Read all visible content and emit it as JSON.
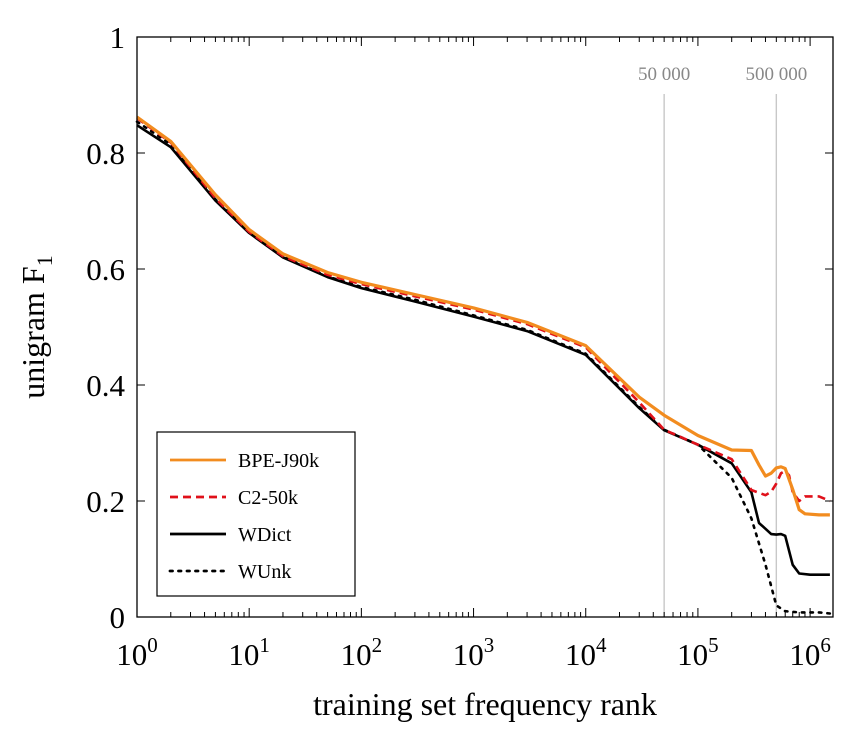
{
  "chart_data": {
    "type": "line",
    "xlabel": "training set frequency rank",
    "ylabel": "unigram F",
    "ylabel_subscript": "1",
    "x_scale": "log",
    "xlim": [
      1,
      1600000
    ],
    "ylim": [
      0,
      1
    ],
    "x_ticks": [
      {
        "value": 1,
        "base": "10",
        "exp": "0"
      },
      {
        "value": 10,
        "base": "10",
        "exp": "1"
      },
      {
        "value": 100,
        "base": "10",
        "exp": "2"
      },
      {
        "value": 1000,
        "base": "10",
        "exp": "3"
      },
      {
        "value": 10000,
        "base": "10",
        "exp": "4"
      },
      {
        "value": 100000,
        "base": "10",
        "exp": "5"
      },
      {
        "value": 1000000,
        "base": "10",
        "exp": "6"
      }
    ],
    "y_ticks": [
      {
        "value": 0,
        "label": "0"
      },
      {
        "value": 0.2,
        "label": "0.2"
      },
      {
        "value": 0.4,
        "label": "0.4"
      },
      {
        "value": 0.6,
        "label": "0.6"
      },
      {
        "value": 0.8,
        "label": "0.8"
      },
      {
        "value": 1,
        "label": "1"
      }
    ],
    "reference_lines": [
      {
        "x": 50000,
        "label": "50 000",
        "color": "#c8c8c8"
      },
      {
        "x": 500000,
        "label": "500 000",
        "color": "#c8c8c8"
      }
    ],
    "grid": false,
    "legend_position": "bottom-left",
    "series": [
      {
        "name": "BPE-J90k",
        "color": "#f28c1f",
        "style": "solid",
        "points": [
          [
            1,
            0.862
          ],
          [
            2,
            0.82
          ],
          [
            5,
            0.728
          ],
          [
            10,
            0.668
          ],
          [
            20,
            0.626
          ],
          [
            50,
            0.594
          ],
          [
            100,
            0.577
          ],
          [
            300,
            0.556
          ],
          [
            1000,
            0.533
          ],
          [
            3000,
            0.508
          ],
          [
            10000,
            0.468
          ],
          [
            30000,
            0.379
          ],
          [
            50000,
            0.348
          ],
          [
            100000,
            0.313
          ],
          [
            200000,
            0.288
          ],
          [
            300000,
            0.287
          ],
          [
            350000,
            0.262
          ],
          [
            400000,
            0.243
          ],
          [
            450000,
            0.248
          ],
          [
            500000,
            0.257
          ],
          [
            550000,
            0.259
          ],
          [
            600000,
            0.256
          ],
          [
            700000,
            0.22
          ],
          [
            800000,
            0.185
          ],
          [
            900000,
            0.178
          ],
          [
            1200000,
            0.176
          ],
          [
            1500000,
            0.176
          ]
        ]
      },
      {
        "name": "C2-50k",
        "color": "#e0101a",
        "style": "dashed",
        "points": [
          [
            1,
            0.86
          ],
          [
            2,
            0.818
          ],
          [
            5,
            0.722
          ],
          [
            10,
            0.664
          ],
          [
            20,
            0.622
          ],
          [
            50,
            0.59
          ],
          [
            100,
            0.574
          ],
          [
            300,
            0.553
          ],
          [
            1000,
            0.53
          ],
          [
            3000,
            0.505
          ],
          [
            10000,
            0.465
          ],
          [
            30000,
            0.37
          ],
          [
            50000,
            0.323
          ],
          [
            100000,
            0.297
          ],
          [
            200000,
            0.272
          ],
          [
            300000,
            0.219
          ],
          [
            400000,
            0.21
          ],
          [
            450000,
            0.216
          ],
          [
            500000,
            0.23
          ],
          [
            550000,
            0.248
          ],
          [
            600000,
            0.252
          ],
          [
            650000,
            0.244
          ],
          [
            700000,
            0.215
          ],
          [
            800000,
            0.2
          ],
          [
            900000,
            0.208
          ],
          [
            1200000,
            0.208
          ],
          [
            1500000,
            0.2
          ]
        ]
      },
      {
        "name": "WDict",
        "color": "#000000",
        "style": "solid",
        "points": [
          [
            1,
            0.848
          ],
          [
            2,
            0.81
          ],
          [
            5,
            0.718
          ],
          [
            10,
            0.662
          ],
          [
            20,
            0.62
          ],
          [
            50,
            0.586
          ],
          [
            100,
            0.567
          ],
          [
            300,
            0.544
          ],
          [
            1000,
            0.518
          ],
          [
            3000,
            0.493
          ],
          [
            10000,
            0.452
          ],
          [
            30000,
            0.36
          ],
          [
            50000,
            0.322
          ],
          [
            100000,
            0.297
          ],
          [
            200000,
            0.265
          ],
          [
            300000,
            0.215
          ],
          [
            350000,
            0.162
          ],
          [
            400000,
            0.152
          ],
          [
            450000,
            0.143
          ],
          [
            500000,
            0.142
          ],
          [
            550000,
            0.143
          ],
          [
            600000,
            0.14
          ],
          [
            700000,
            0.09
          ],
          [
            800000,
            0.075
          ],
          [
            1000000,
            0.073
          ],
          [
            1500000,
            0.073
          ]
        ]
      },
      {
        "name": "WUnk",
        "color": "#000000",
        "style": "dotted",
        "points": [
          [
            1,
            0.854
          ],
          [
            2,
            0.815
          ],
          [
            5,
            0.72
          ],
          [
            10,
            0.664
          ],
          [
            20,
            0.621
          ],
          [
            50,
            0.587
          ],
          [
            100,
            0.569
          ],
          [
            300,
            0.547
          ],
          [
            1000,
            0.52
          ],
          [
            3000,
            0.495
          ],
          [
            10000,
            0.454
          ],
          [
            30000,
            0.362
          ],
          [
            50000,
            0.323
          ],
          [
            100000,
            0.297
          ],
          [
            200000,
            0.24
          ],
          [
            300000,
            0.17
          ],
          [
            400000,
            0.09
          ],
          [
            500000,
            0.02
          ],
          [
            600000,
            0.01
          ],
          [
            800000,
            0.008
          ],
          [
            1200000,
            0.008
          ],
          [
            1500000,
            0.006
          ]
        ]
      }
    ]
  }
}
